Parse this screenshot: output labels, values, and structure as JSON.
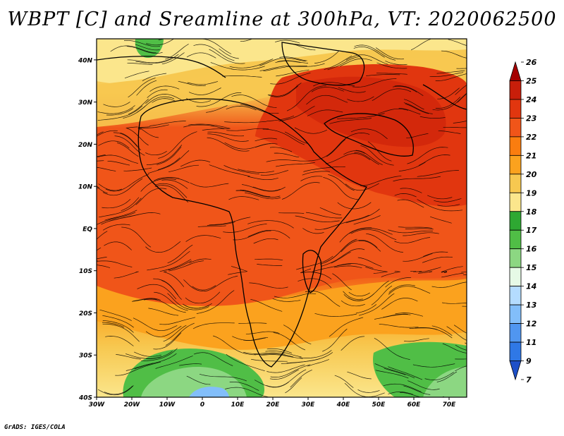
{
  "title": "WBPT [C] and Sreamline at 300hPa, VT: 2020062500",
  "footer": "GrADS: IGES/COLA",
  "lat_labels": [
    "40N",
    "30N",
    "20N",
    "10N",
    "EQ",
    "10S",
    "20S",
    "30S",
    "40S"
  ],
  "lon_labels": [
    "30W",
    "20W",
    "10W",
    "0",
    "10E",
    "20E",
    "30E",
    "40E",
    "50E",
    "60E",
    "70E"
  ],
  "colorbar": {
    "labels": [
      "26",
      "25",
      "24",
      "23",
      "22",
      "21",
      "20",
      "19",
      "18",
      "17",
      "16",
      "15",
      "14",
      "13",
      "12",
      "11",
      "9",
      "7"
    ],
    "colors": [
      "#a50000",
      "#c81e0a",
      "#e1360f",
      "#f05519",
      "#fa7d0f",
      "#fba21e",
      "#f7c850",
      "#fbe68c",
      "#2ea832",
      "#50be46",
      "#8cd782",
      "#e6fae6",
      "#b4dcff",
      "#82befa",
      "#5096f0",
      "#2f78e6",
      "#1e50c8"
    ]
  },
  "map": {
    "projection": "lat-lon",
    "lon_range": [
      -30,
      75
    ],
    "lat_range": [
      -40,
      45
    ],
    "field_colors": {
      "hot": "#e1360f",
      "warm": "#f05519",
      "orange": "#fa7d0f",
      "light_orange": "#fba21e",
      "tan": "#f7c850",
      "pale": "#fbe68c",
      "green": "#50be46",
      "light_green": "#8cd782",
      "blue": "#82befa"
    }
  }
}
